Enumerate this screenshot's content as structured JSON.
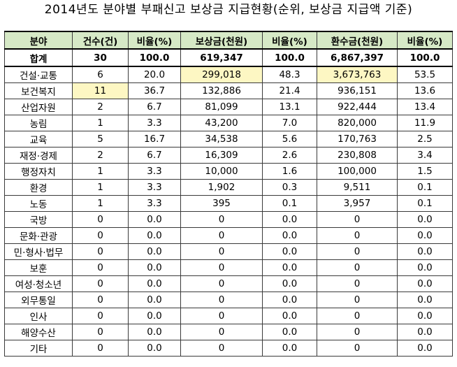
{
  "title": "2014년도 분야별 부패신고 보상금 지급현황(순위, 보상금 지급액 기준)",
  "headers": [
    "분야",
    "건수(건)",
    "비율(%)",
    "보상금(천원)",
    "비율(%)",
    "환수금(천원)",
    "비율(%)"
  ],
  "total": [
    "합계",
    "30",
    "100.0",
    "619,347",
    "100.0",
    "6,867,397",
    "100.0"
  ],
  "rows": [
    [
      "건설·교통",
      "6",
      "20.0",
      "299,018",
      "48.3",
      "3,673,763",
      "53.5"
    ],
    [
      "보건복지",
      "11",
      "36.7",
      "132,886",
      "21.4",
      "936,151",
      "13.6"
    ],
    [
      "산업자원",
      "2",
      "6.7",
      "81,099",
      "13.1",
      "922,444",
      "13.4"
    ],
    [
      "농림",
      "1",
      "3.3",
      "43,200",
      "7.0",
      "820,000",
      "11.9"
    ],
    [
      "교육",
      "5",
      "16.7",
      "34,538",
      "5.6",
      "170,763",
      "2.5"
    ],
    [
      "재정·경제",
      "2",
      "6.7",
      "16,309",
      "2.6",
      "230,808",
      "3.4"
    ],
    [
      "행정자치",
      "1",
      "3.3",
      "10,000",
      "1.6",
      "100,000",
      "1.5"
    ],
    [
      "환경",
      "1",
      "3.3",
      "1,902",
      "0.3",
      "9,511",
      "0.1"
    ],
    [
      "노동",
      "1",
      "3.3",
      "395",
      "0.1",
      "3,957",
      "0.1"
    ],
    [
      "국방",
      "0",
      "0.0",
      "0",
      "0.0",
      "0",
      "0.0"
    ],
    [
      "문화·관광",
      "0",
      "0.0",
      "0",
      "0.0",
      "0",
      "0.0"
    ],
    [
      "민·형사·법무",
      "0",
      "0.0",
      "0",
      "0.0",
      "0",
      "0.0"
    ],
    [
      "보훈",
      "0",
      "0.0",
      "0",
      "0.0",
      "0",
      "0.0"
    ],
    [
      "여성·청소년",
      "0",
      "0.0",
      "0",
      "0.0",
      "0",
      "0.0"
    ],
    [
      "외무통일",
      "0",
      "0.0",
      "0",
      "0.0",
      "0",
      "0.0"
    ],
    [
      "인사",
      "0",
      "0.0",
      "0",
      "0.0",
      "0",
      "0.0"
    ],
    [
      "해양수산",
      "0",
      "0.0",
      "0",
      "0.0",
      "0",
      "0.0"
    ],
    [
      "기타",
      "0",
      "0.0",
      "0",
      "0.0",
      "0",
      "0.0"
    ]
  ],
  "colors": {
    "header_bg": "#d6e9c6",
    "highlight_bg": "#fdf7c3"
  }
}
